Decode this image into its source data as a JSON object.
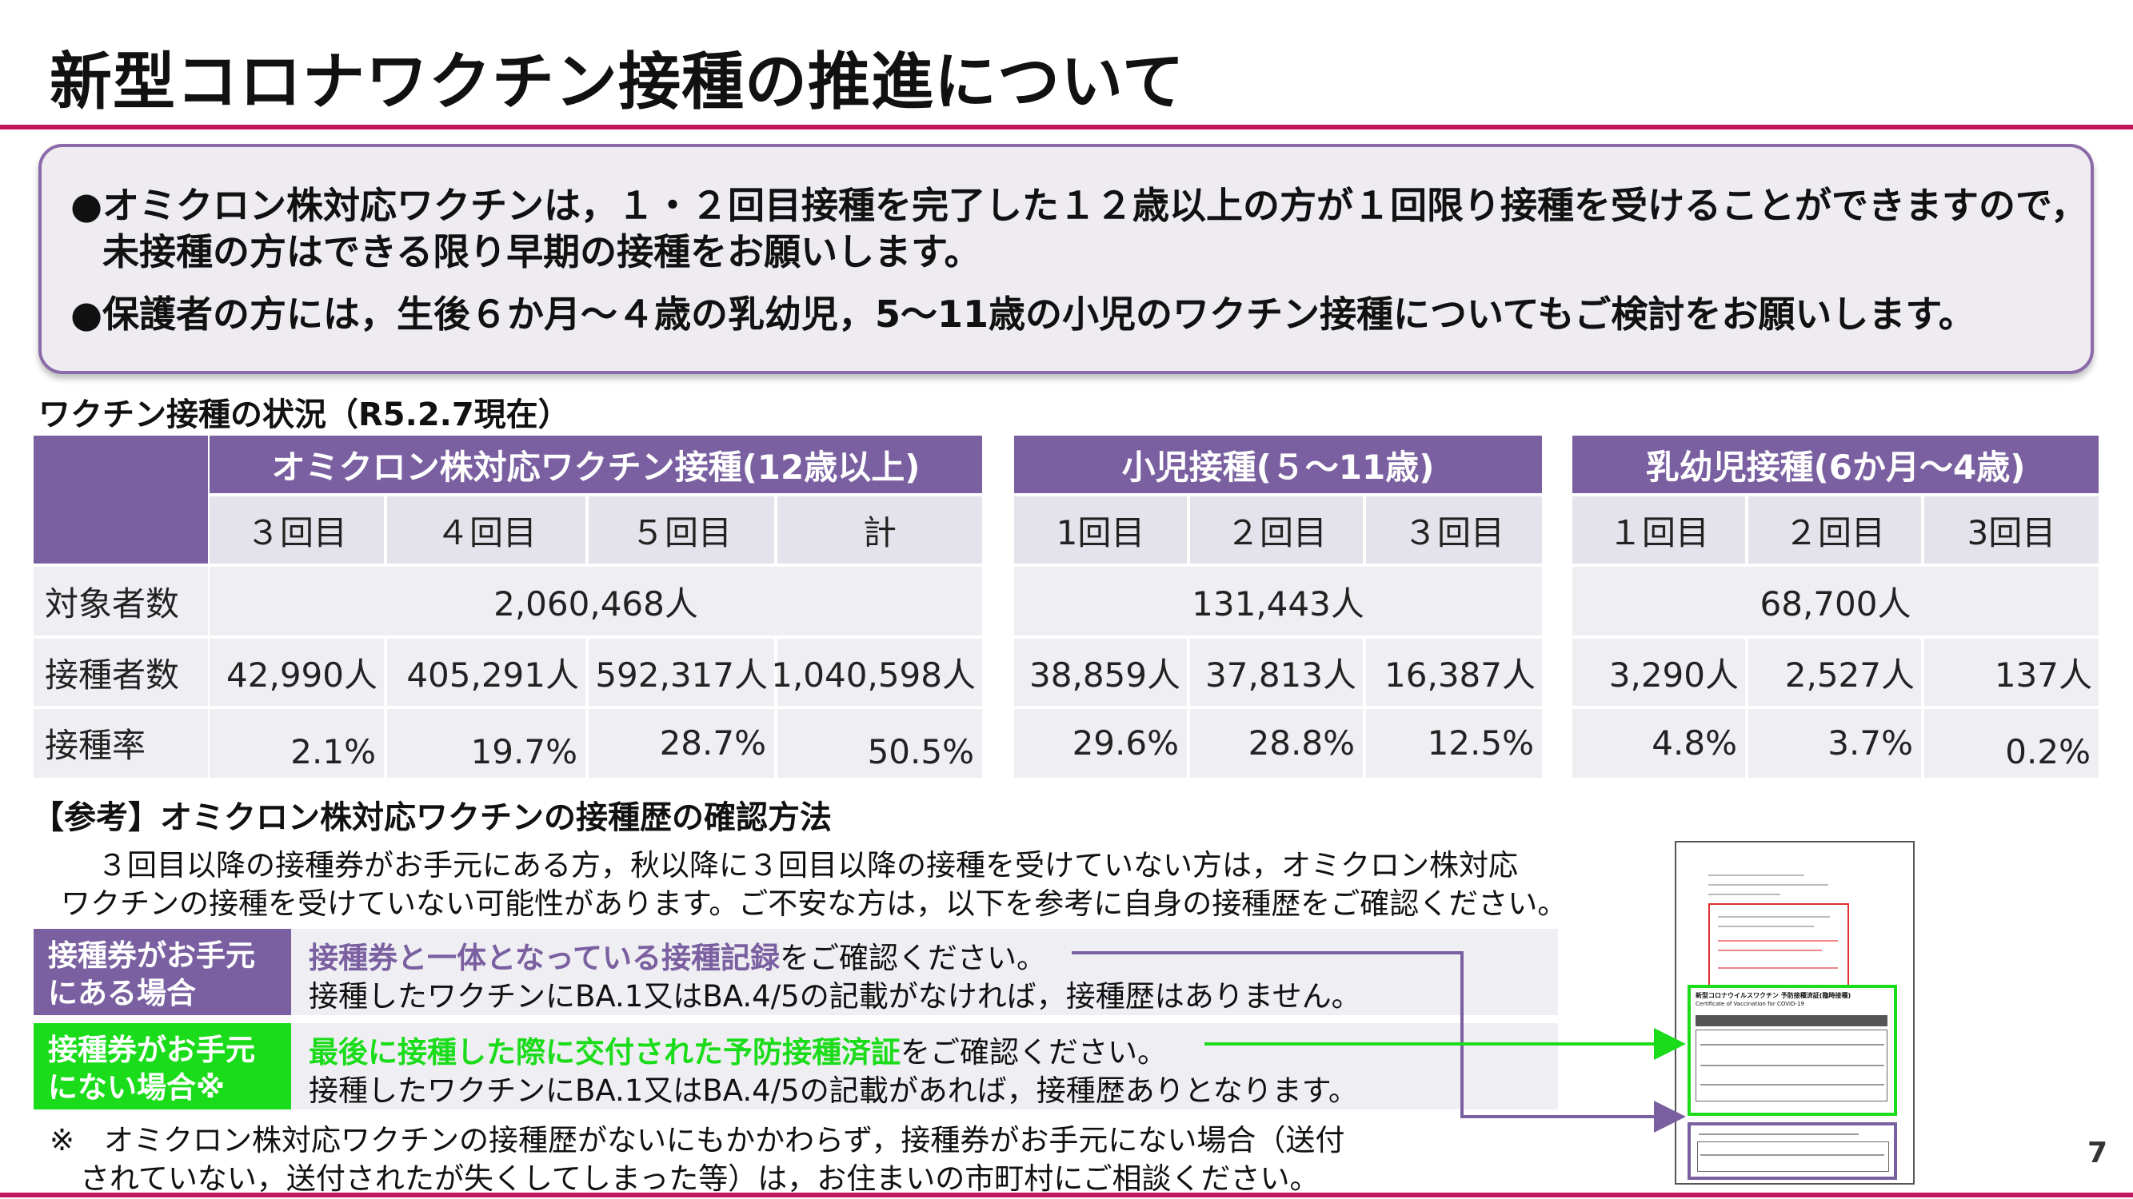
{
  "title": "新型コロナワクチン接種の推進について",
  "notice": {
    "bullet": "●",
    "line1": "オミクロン株対応ワクチンは，１・２回目接種を完了した１２歳以上の方が１回限り接種を受けることができますので，",
    "line1b": "未接種の方はできる限り早期の接種をお願いします。",
    "line2": "保護者の方には，生後６か月～４歳の乳幼児，5～11歳の小児のワクチン接種についてもご検討をお願いします。"
  },
  "status_title": "ワクチン接種の状況（R5.2.7現在）",
  "table": {
    "groups": [
      {
        "title": "オミクロン株対応ワクチン接種(12歳以上)",
        "cols": [
          "３回目",
          "４回目",
          "５回目",
          "計"
        ],
        "target": "2,060,468人",
        "vaccinated": [
          "42,990人",
          "405,291人",
          "592,317人",
          "1,040,598人"
        ],
        "rate": [
          "2.1%",
          "19.7%",
          "28.7%",
          "50.5%"
        ]
      },
      {
        "title": "小児接種(５～11歳)",
        "cols": [
          "1回目",
          "２回目",
          "３回目"
        ],
        "target": "131,443人",
        "vaccinated": [
          "38,859人",
          "37,813人",
          "16,387人"
        ],
        "rate": [
          "29.6%",
          "28.8%",
          "12.5%"
        ]
      },
      {
        "title": "乳幼児接種(6か月～4歳)",
        "cols": [
          "１回目",
          "２回目",
          "3回目"
        ],
        "target": "68,700人",
        "vaccinated": [
          "3,290人",
          "2,527人",
          "137人"
        ],
        "rate": [
          "4.8%",
          "3.7%",
          "0.2%"
        ]
      }
    ],
    "row_labels": [
      "対象者数",
      "接種者数",
      "接種率"
    ]
  },
  "reference": {
    "title": "【参考】オミクロン株対応ワクチンの接種歴の確認方法",
    "intro1": "３回目以降の接種券がお手元にある方，秋以降に３回目以降の接種を受けていない方は，オミクロン株対応",
    "intro2": "ワクチンの接種を受けていない可能性があります。ご不安な方は，以下を参考に自身の接種歴をご確認ください。",
    "case1_label1": "接種券がお手元",
    "case1_label2": "にある場合",
    "case1_highlight": "接種券と一体となっている接種記録",
    "case1_rest": "をご確認ください。",
    "case1_line2": "接種したワクチンにBA.1又はBA.4/5の記載がなければ，接種歴はありません。",
    "case2_label1": "接種券がお手元",
    "case2_label2": "にない場合※",
    "case2_highlight": "最後に接種した際に交付された予防接種済証",
    "case2_rest": "をご確認ください。",
    "case2_line2": "接種したワクチンにBA.1又はBA.4/5の記載があれば，接種歴ありとなります。",
    "note1": "※　オミクロン株対応ワクチンの接種歴がないにもかかわらず，接種券がお手元にない場合（送付",
    "note2": "されていない，送付されたが失くしてしまった等）は，お住まいの市町村にご相談ください。"
  },
  "certificate": {
    "title": "新型コロナウイルスワクチン 予防接種済証(臨時接種)",
    "subtitle": "Certificate of Vaccination for COVID-19"
  },
  "page_number": "7",
  "colors": {
    "accent": "#c0185a",
    "purple": "#7a60a0",
    "green": "#1bdc1b"
  }
}
